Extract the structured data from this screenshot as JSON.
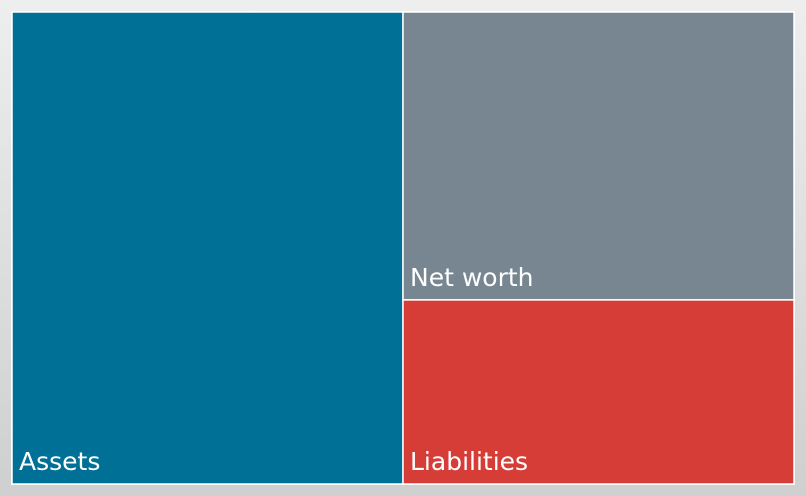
{
  "chart_data": {
    "type": "treemap",
    "categories": [
      "Assets",
      "Net worth",
      "Liabilities"
    ],
    "values": [
      100,
      61,
      39
    ],
    "colors": [
      "#007096",
      "#778691",
      "#d63d37"
    ]
  }
}
